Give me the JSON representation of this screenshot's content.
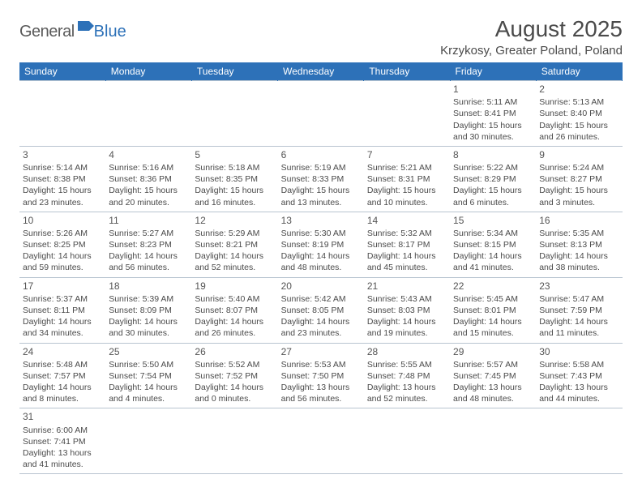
{
  "logo": {
    "general": "General",
    "blue": "Blue"
  },
  "title": "August 2025",
  "location": "Krzykosy, Greater Poland, Poland",
  "colors": {
    "header_bg": "#2d71b8",
    "header_text": "#ffffff",
    "body_text": "#4a4a4a",
    "grid_line": "#b8c4d0",
    "background": "#ffffff"
  },
  "day_headers": [
    "Sunday",
    "Monday",
    "Tuesday",
    "Wednesday",
    "Thursday",
    "Friday",
    "Saturday"
  ],
  "weeks": [
    [
      null,
      null,
      null,
      null,
      null,
      {
        "d": "1",
        "sr": "5:11 AM",
        "ss": "8:41 PM",
        "dl1": "15 hours",
        "dl2": "and 30 minutes."
      },
      {
        "d": "2",
        "sr": "5:13 AM",
        "ss": "8:40 PM",
        "dl1": "15 hours",
        "dl2": "and 26 minutes."
      }
    ],
    [
      {
        "d": "3",
        "sr": "5:14 AM",
        "ss": "8:38 PM",
        "dl1": "15 hours",
        "dl2": "and 23 minutes."
      },
      {
        "d": "4",
        "sr": "5:16 AM",
        "ss": "8:36 PM",
        "dl1": "15 hours",
        "dl2": "and 20 minutes."
      },
      {
        "d": "5",
        "sr": "5:18 AM",
        "ss": "8:35 PM",
        "dl1": "15 hours",
        "dl2": "and 16 minutes."
      },
      {
        "d": "6",
        "sr": "5:19 AM",
        "ss": "8:33 PM",
        "dl1": "15 hours",
        "dl2": "and 13 minutes."
      },
      {
        "d": "7",
        "sr": "5:21 AM",
        "ss": "8:31 PM",
        "dl1": "15 hours",
        "dl2": "and 10 minutes."
      },
      {
        "d": "8",
        "sr": "5:22 AM",
        "ss": "8:29 PM",
        "dl1": "15 hours",
        "dl2": "and 6 minutes."
      },
      {
        "d": "9",
        "sr": "5:24 AM",
        "ss": "8:27 PM",
        "dl1": "15 hours",
        "dl2": "and 3 minutes."
      }
    ],
    [
      {
        "d": "10",
        "sr": "5:26 AM",
        "ss": "8:25 PM",
        "dl1": "14 hours",
        "dl2": "and 59 minutes."
      },
      {
        "d": "11",
        "sr": "5:27 AM",
        "ss": "8:23 PM",
        "dl1": "14 hours",
        "dl2": "and 56 minutes."
      },
      {
        "d": "12",
        "sr": "5:29 AM",
        "ss": "8:21 PM",
        "dl1": "14 hours",
        "dl2": "and 52 minutes."
      },
      {
        "d": "13",
        "sr": "5:30 AM",
        "ss": "8:19 PM",
        "dl1": "14 hours",
        "dl2": "and 48 minutes."
      },
      {
        "d": "14",
        "sr": "5:32 AM",
        "ss": "8:17 PM",
        "dl1": "14 hours",
        "dl2": "and 45 minutes."
      },
      {
        "d": "15",
        "sr": "5:34 AM",
        "ss": "8:15 PM",
        "dl1": "14 hours",
        "dl2": "and 41 minutes."
      },
      {
        "d": "16",
        "sr": "5:35 AM",
        "ss": "8:13 PM",
        "dl1": "14 hours",
        "dl2": "and 38 minutes."
      }
    ],
    [
      {
        "d": "17",
        "sr": "5:37 AM",
        "ss": "8:11 PM",
        "dl1": "14 hours",
        "dl2": "and 34 minutes."
      },
      {
        "d": "18",
        "sr": "5:39 AM",
        "ss": "8:09 PM",
        "dl1": "14 hours",
        "dl2": "and 30 minutes."
      },
      {
        "d": "19",
        "sr": "5:40 AM",
        "ss": "8:07 PM",
        "dl1": "14 hours",
        "dl2": "and 26 minutes."
      },
      {
        "d": "20",
        "sr": "5:42 AM",
        "ss": "8:05 PM",
        "dl1": "14 hours",
        "dl2": "and 23 minutes."
      },
      {
        "d": "21",
        "sr": "5:43 AM",
        "ss": "8:03 PM",
        "dl1": "14 hours",
        "dl2": "and 19 minutes."
      },
      {
        "d": "22",
        "sr": "5:45 AM",
        "ss": "8:01 PM",
        "dl1": "14 hours",
        "dl2": "and 15 minutes."
      },
      {
        "d": "23",
        "sr": "5:47 AM",
        "ss": "7:59 PM",
        "dl1": "14 hours",
        "dl2": "and 11 minutes."
      }
    ],
    [
      {
        "d": "24",
        "sr": "5:48 AM",
        "ss": "7:57 PM",
        "dl1": "14 hours",
        "dl2": "and 8 minutes."
      },
      {
        "d": "25",
        "sr": "5:50 AM",
        "ss": "7:54 PM",
        "dl1": "14 hours",
        "dl2": "and 4 minutes."
      },
      {
        "d": "26",
        "sr": "5:52 AM",
        "ss": "7:52 PM",
        "dl1": "14 hours",
        "dl2": "and 0 minutes."
      },
      {
        "d": "27",
        "sr": "5:53 AM",
        "ss": "7:50 PM",
        "dl1": "13 hours",
        "dl2": "and 56 minutes."
      },
      {
        "d": "28",
        "sr": "5:55 AM",
        "ss": "7:48 PM",
        "dl1": "13 hours",
        "dl2": "and 52 minutes."
      },
      {
        "d": "29",
        "sr": "5:57 AM",
        "ss": "7:45 PM",
        "dl1": "13 hours",
        "dl2": "and 48 minutes."
      },
      {
        "d": "30",
        "sr": "5:58 AM",
        "ss": "7:43 PM",
        "dl1": "13 hours",
        "dl2": "and 44 minutes."
      }
    ],
    [
      {
        "d": "31",
        "sr": "6:00 AM",
        "ss": "7:41 PM",
        "dl1": "13 hours",
        "dl2": "and 41 minutes."
      },
      null,
      null,
      null,
      null,
      null,
      null
    ]
  ],
  "labels": {
    "sunrise": "Sunrise:",
    "sunset": "Sunset:",
    "daylight": "Daylight:"
  }
}
